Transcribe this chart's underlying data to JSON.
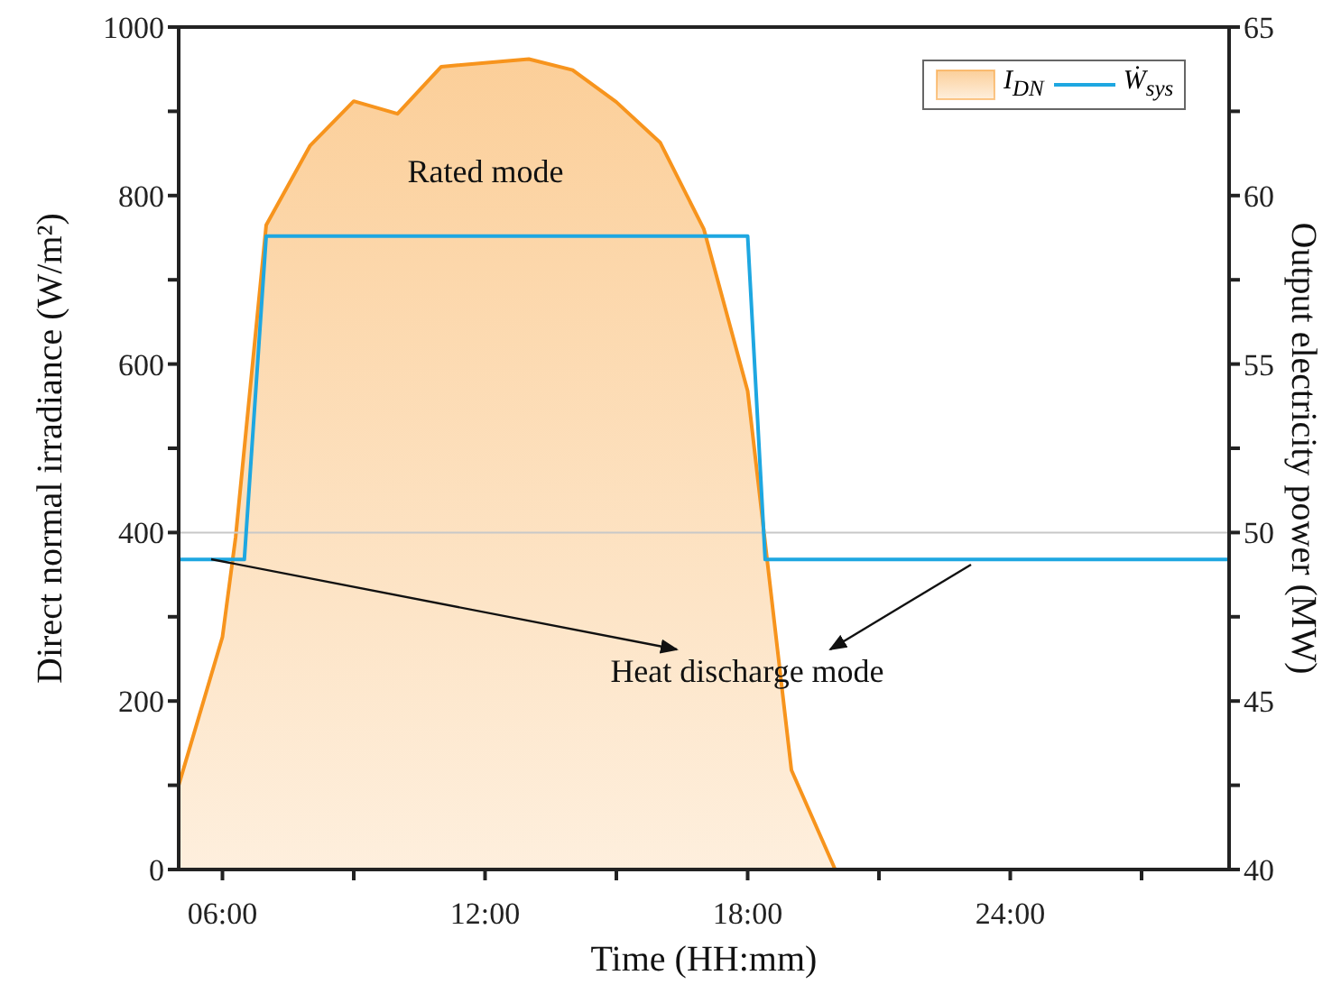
{
  "chart_data": {
    "type": "area",
    "xlabel": "Time (HH:mm)",
    "ylabel": "Direct normal irradiance (W/m²)",
    "y2label": "Output electricity power (MW)",
    "xlim": [
      5,
      29
    ],
    "xticks": [
      {
        "value": 6,
        "label": "06:00"
      },
      {
        "value": 9,
        "label": null
      },
      {
        "value": 12,
        "label": "12:00"
      },
      {
        "value": 15,
        "label": null
      },
      {
        "value": 18,
        "label": "18:00"
      },
      {
        "value": 21,
        "label": null
      },
      {
        "value": 24,
        "label": "24:00"
      },
      {
        "value": 27,
        "label": null
      }
    ],
    "ylim": [
      0,
      1000
    ],
    "yticks": [
      0,
      {
        "value": 100,
        "label": null
      },
      200,
      {
        "value": 300,
        "label": null
      },
      400,
      {
        "value": 500,
        "label": null
      },
      600,
      {
        "value": 700,
        "label": null
      },
      800,
      {
        "value": 900,
        "label": null
      },
      1000
    ],
    "y2lim": [
      40,
      65
    ],
    "y2ticks": [
      40,
      {
        "value": 42.5,
        "label": null
      },
      45,
      {
        "value": 47.5,
        "label": null
      },
      50,
      {
        "value": 52.5,
        "label": null
      },
      55,
      {
        "value": 57.5,
        "label": null
      },
      60,
      {
        "value": 62.5,
        "label": null
      },
      65
    ],
    "series": [
      {
        "name": "I$_{DN}$",
        "color": "#f7941d",
        "x": [
          5,
          6,
          6.3,
          7,
          8,
          9,
          10,
          11,
          13,
          14,
          15,
          16,
          17,
          18,
          19,
          20,
          29
        ],
        "values": [
          100,
          276,
          394,
          765,
          859,
          912,
          897,
          953,
          962,
          949,
          911,
          863,
          760,
          568,
          118,
          0,
          0
        ]
      },
      {
        "name": "Ẇ$_{sys}$",
        "type": "line",
        "axis": "y2",
        "color": "#1ea7e1",
        "x": [
          5,
          6.5,
          7,
          18,
          18.4,
          29
        ],
        "values": [
          49.2,
          49.2,
          58.8,
          58.8,
          49.2,
          49.2
        ]
      }
    ],
    "ref_lines": [
      {
        "axis": "y",
        "value": 400,
        "color": "#c8c8c8"
      }
    ],
    "annotations": [
      "Rated mode",
      "Heat discharge mode"
    ],
    "legend": "top right"
  }
}
